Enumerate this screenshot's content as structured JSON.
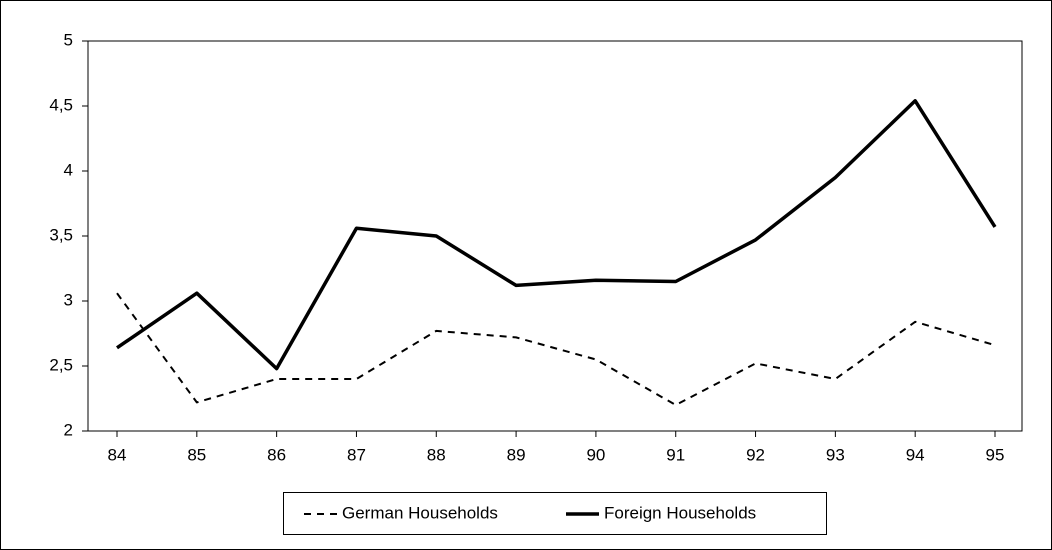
{
  "chart_data": {
    "type": "line",
    "categories": [
      "84",
      "85",
      "86",
      "87",
      "88",
      "89",
      "90",
      "91",
      "92",
      "93",
      "94",
      "95"
    ],
    "series": [
      {
        "name": "German Households",
        "color": "#000000",
        "dash": "dashed",
        "values": [
          3.06,
          2.22,
          2.4,
          2.4,
          2.77,
          2.72,
          2.55,
          2.2,
          2.52,
          2.4,
          2.84,
          2.66
        ]
      },
      {
        "name": "Foreign Households",
        "color": "#000000",
        "dash": "solid",
        "values": [
          2.64,
          3.06,
          2.48,
          3.56,
          3.5,
          3.12,
          3.16,
          3.15,
          3.47,
          3.95,
          4.54,
          3.57
        ]
      }
    ],
    "ylim": [
      2,
      5
    ],
    "yticks": [
      2,
      {
        "value": 2.5,
        "label": "2,5"
      },
      3,
      {
        "value": 3.5,
        "label": "3,5"
      },
      4,
      {
        "value": 4.5,
        "label": "4,5"
      },
      5
    ],
    "grid": false,
    "legend": "bottom"
  }
}
